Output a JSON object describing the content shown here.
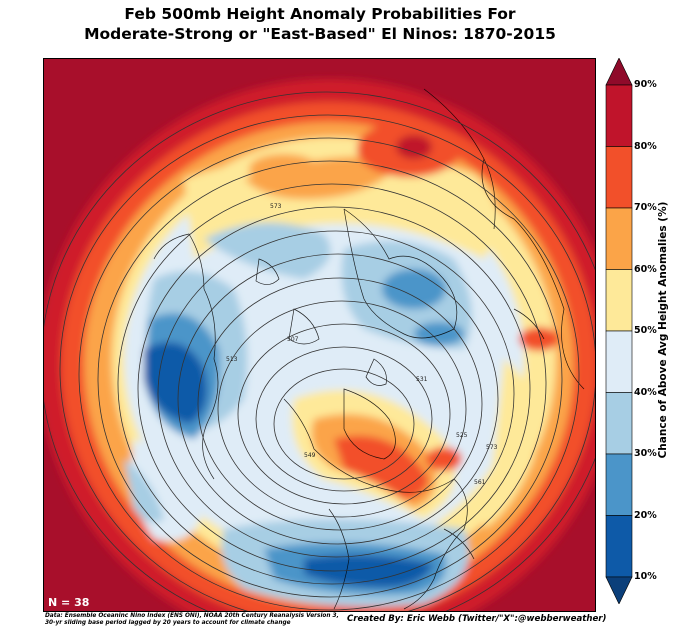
{
  "title": {
    "line1": "Feb 500mb Height Anomaly Probabilities For",
    "line2": "Moderate-Strong or \"East-Based\" El Ninos: 1870-2015"
  },
  "map": {
    "projection": "north-polar-stereographic",
    "sample_label": "N = 38",
    "contour_labels": [
      "573",
      "507",
      "513",
      "531",
      "525",
      "549",
      "561",
      "573"
    ]
  },
  "colorbar": {
    "title": "Chance of Above Avg Height Anomalies (%)",
    "ticks": [
      "90%",
      "80%",
      "70%",
      "60%",
      "50%",
      "40%",
      "30%",
      "20%",
      "10%"
    ],
    "bins": [
      {
        "range": "80-90",
        "color": "#c0142b"
      },
      {
        "range": "70-80",
        "color": "#f2502a"
      },
      {
        "range": "60-70",
        "color": "#fba448"
      },
      {
        "range": "50-60",
        "color": "#fee999"
      },
      {
        "range": "40-50",
        "color": "#dfecf7"
      },
      {
        "range": "30-40",
        "color": "#a7cee4"
      },
      {
        "range": "20-30",
        "color": "#4b95c9"
      },
      {
        "range": "10-20",
        "color": "#0e5aa8"
      }
    ],
    "over_color": "#8f0a2a",
    "under_color": "#0b3f7a"
  },
  "footer": {
    "sources_line1": "Data: Ensemble Oceaninc Nino Index (ENS ONI), NOAA 20th Century Reanalysis Version 3,",
    "sources_line2": "30-yr sliding base period lagged by 20 years to account for climate change",
    "credit": "Created By: Eric Webb (Twitter/\"X\":@webberweather)"
  }
}
